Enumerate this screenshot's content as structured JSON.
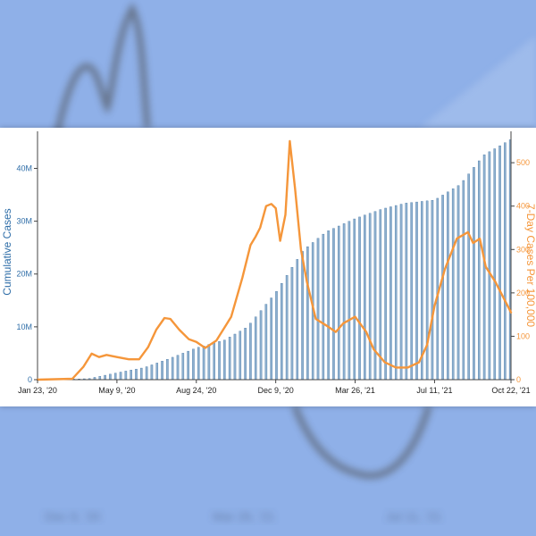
{
  "colors": {
    "background_blue": "#8fb0e8",
    "bar_fill": "#8eb0cf",
    "bar_stroke": "#3d6fa0",
    "line": "#f5963a",
    "left_axis_text": "#2f6ea8",
    "right_axis_text": "#f5963a"
  },
  "chart_data": {
    "type": "bar+line",
    "x_tick_labels": [
      "Jan 23, '20",
      "May 9, '20",
      "Aug 24, '20",
      "Dec 9, '20",
      "Mar 26, '21",
      "Jul 11, '21",
      "Oct 22, '21"
    ],
    "x_range": [
      "2020-01-23",
      "2021-10-22"
    ],
    "left_axis": {
      "label": "Cumulative Cases",
      "ticks": [
        "0",
        "10M",
        "20M",
        "30M",
        "40M"
      ],
      "ylim": [
        0,
        46
      ]
    },
    "right_axis": {
      "label": "7-Day Cases Per 100,000",
      "ticks": [
        "0",
        "100",
        "200",
        "300",
        "400",
        "500"
      ],
      "ylim": [
        0,
        560
      ]
    },
    "series": [
      {
        "type": "bar",
        "axis": "left",
        "units": "millions",
        "x": [
          "2020-01-23",
          "2020-03-01",
          "2020-04-01",
          "2020-05-09",
          "2020-06-15",
          "2020-07-15",
          "2020-08-24",
          "2020-10-01",
          "2020-11-01",
          "2020-12-09",
          "2021-01-15",
          "2021-02-15",
          "2021-03-26",
          "2021-05-01",
          "2021-06-01",
          "2021-07-11",
          "2021-08-15",
          "2021-09-15",
          "2021-10-22"
        ],
        "values": [
          0,
          0.05,
          0.2,
          1.3,
          2.3,
          3.8,
          6.0,
          7.5,
          10.0,
          16.5,
          24.5,
          28.0,
          30.5,
          32.3,
          33.4,
          34.0,
          37.0,
          42.5,
          45.5
        ]
      },
      {
        "type": "line",
        "axis": "right",
        "x": [
          "2020-01-23",
          "2020-03-10",
          "2020-03-25",
          "2020-04-05",
          "2020-04-15",
          "2020-04-25",
          "2020-05-09",
          "2020-05-25",
          "2020-06-08",
          "2020-06-20",
          "2020-07-01",
          "2020-07-12",
          "2020-07-20",
          "2020-08-01",
          "2020-08-14",
          "2020-08-24",
          "2020-09-05",
          "2020-09-20",
          "2020-10-10",
          "2020-10-25",
          "2020-11-05",
          "2020-11-12",
          "2020-11-18",
          "2020-11-26",
          "2020-12-03",
          "2020-12-09",
          "2020-12-15",
          "2020-12-22",
          "2020-12-28",
          "2021-01-04",
          "2021-01-12",
          "2021-01-20",
          "2021-02-01",
          "2021-02-15",
          "2021-02-28",
          "2021-03-10",
          "2021-03-26",
          "2021-04-10",
          "2021-04-20",
          "2021-05-05",
          "2021-05-20",
          "2021-06-05",
          "2021-06-20",
          "2021-07-01",
          "2021-07-11",
          "2021-07-25",
          "2021-08-10",
          "2021-08-25",
          "2021-09-01",
          "2021-09-10",
          "2021-09-18",
          "2021-10-01",
          "2021-10-22"
        ],
        "values": [
          0,
          2,
          30,
          60,
          52,
          57,
          52,
          47,
          47,
          75,
          115,
          142,
          140,
          115,
          93,
          87,
          73,
          90,
          145,
          235,
          310,
          330,
          350,
          400,
          405,
          395,
          320,
          380,
          550,
          440,
          300,
          225,
          140,
          125,
          110,
          130,
          145,
          110,
          70,
          40,
          28,
          28,
          40,
          80,
          170,
          255,
          325,
          340,
          315,
          325,
          260,
          225,
          155
        ]
      }
    ]
  }
}
